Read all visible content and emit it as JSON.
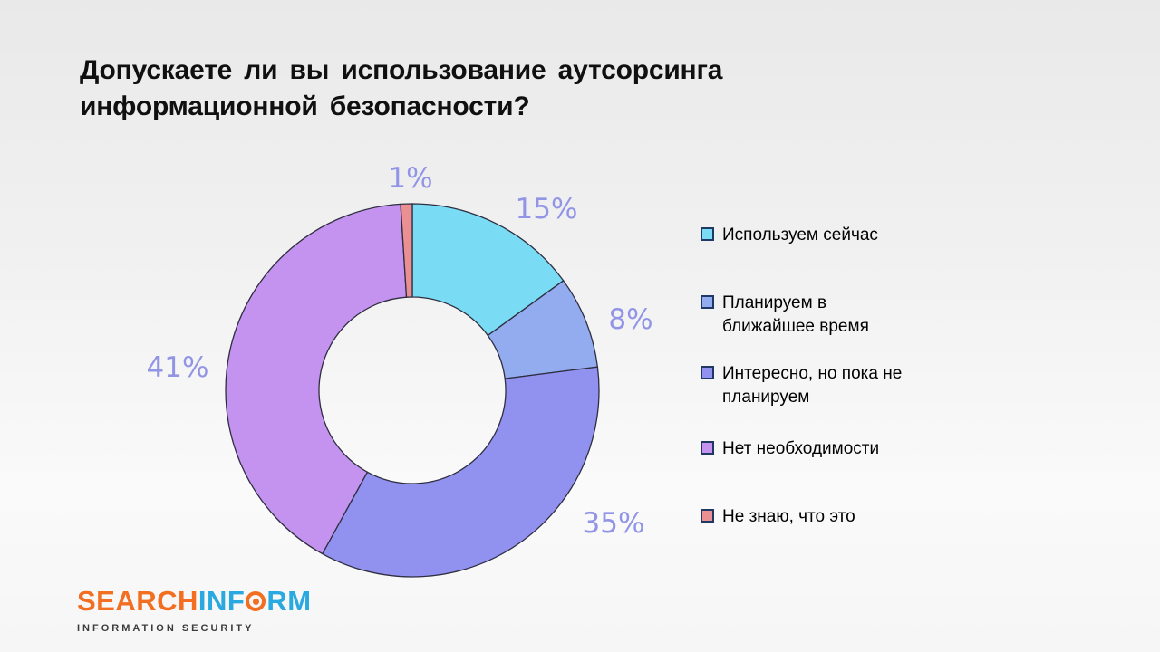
{
  "title": "Допускаете ли вы использование аутсорсинга\nинформационной безопасности?",
  "chart_data": {
    "type": "pie",
    "subtype": "donut",
    "title": "Допускаете ли вы использование аутсорсинга информационной безопасности?",
    "categories": [
      "Используем сейчас",
      "Планируем в ближайшее время",
      "Интересно, но пока не планируем",
      "Нет необходимости",
      "Не знаю, что это"
    ],
    "values": [
      15,
      8,
      35,
      41,
      1
    ],
    "labels": [
      "15%",
      "8%",
      "35%",
      "41%",
      "1%"
    ],
    "colors": [
      "#79dbf4",
      "#93acf0",
      "#9191f0",
      "#c493f0",
      "#ea8f92"
    ],
    "start_angle_deg": 0,
    "direction": "clockwise",
    "inner_radius_ratio": 0.5,
    "slice_border_color": "#2e2e40",
    "percent_label_color": "#9295e6",
    "legend_position": "right",
    "legend_swatch_border_color": "#1f3864"
  },
  "legend": {
    "items": [
      "Используем сейчас",
      "Планируем в\nближайшее время",
      "Интересно, но пока не\nпланируем",
      "Нет необходимости",
      "Не знаю, что это"
    ]
  },
  "logo": {
    "word_search": "SEARCH",
    "word_inf": "INF",
    "word_rm": "RM",
    "subtitle": "INFORMATION SECURITY",
    "orange": "#f26e21",
    "blue": "#2aa9e0"
  }
}
